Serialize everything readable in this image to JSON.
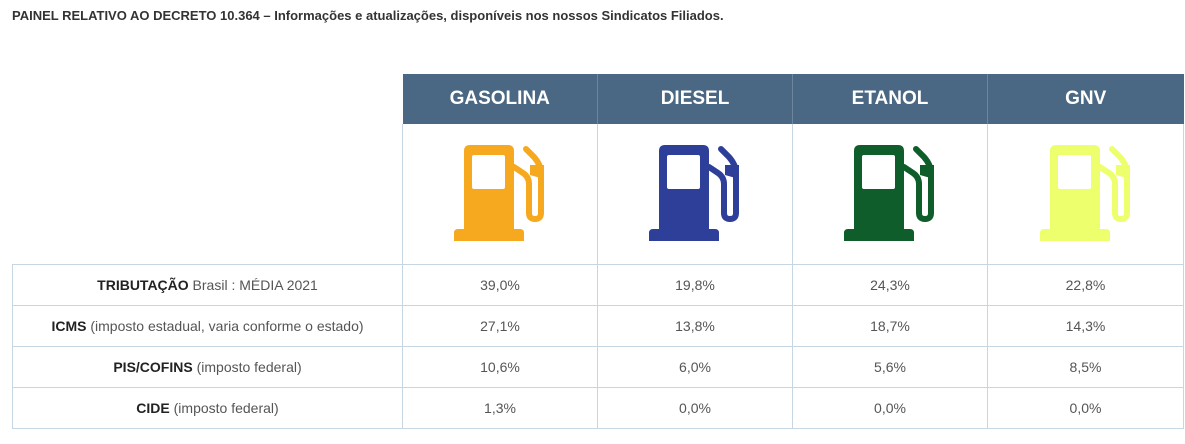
{
  "page": {
    "title": "PAINEL RELATIVO AO DECRETO 10.364 – Informações e atualizações, disponíveis nos nossos Sindicatos Filiados."
  },
  "fuels": [
    {
      "name": "GASOLINA",
      "icon": "fuel-pump-icon",
      "color": "#f6a91f"
    },
    {
      "name": "DIESEL",
      "icon": "fuel-pump-icon",
      "color": "#2e3f99"
    },
    {
      "name": "ETANOL",
      "icon": "fuel-pump-icon",
      "color": "#0f5d2a"
    },
    {
      "name": "GNV",
      "icon": "fuel-pump-icon",
      "color": "#eeff6e"
    }
  ],
  "header_color": "#4a6783",
  "rows": [
    {
      "label_bold": "TRIBUTAÇÃO",
      "label_rest": " Brasil : MÉDIA 2021",
      "values": [
        "39,0%",
        "19,8%",
        "24,3%",
        "22,8%"
      ]
    },
    {
      "label_bold": "ICMS",
      "label_rest": " (imposto estadual, varia conforme o estado)",
      "values": [
        "27,1%",
        "13,8%",
        "18,7%",
        "14,3%"
      ]
    },
    {
      "label_bold": "PIS/COFINS",
      "label_rest": " (imposto federal)",
      "values": [
        "10,6%",
        "6,0%",
        "5,6%",
        "8,5%"
      ]
    },
    {
      "label_bold": "CIDE",
      "label_rest": " (imposto federal)",
      "values": [
        "1,3%",
        "0,0%",
        "0,0%",
        "0,0%"
      ]
    }
  ]
}
